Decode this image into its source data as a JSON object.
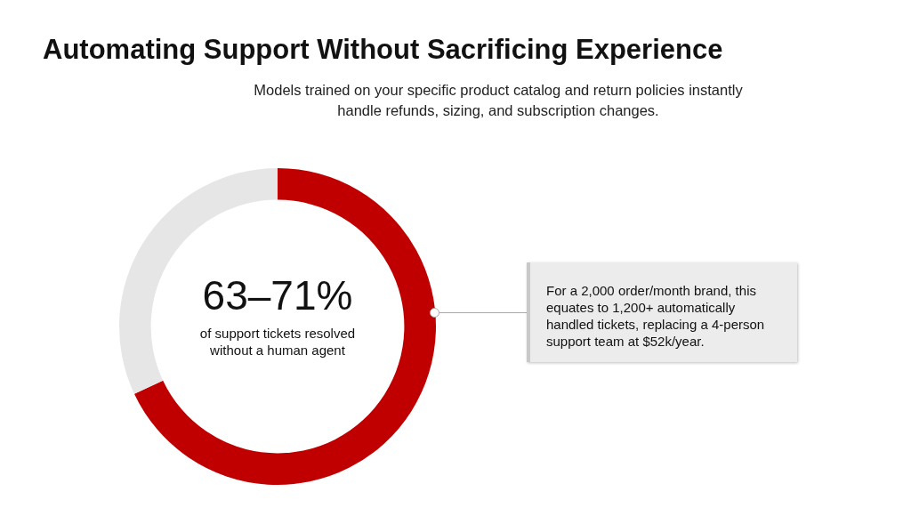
{
  "chart_data": {
    "type": "donut",
    "title": "Automating Support Without Sacrificing Experience",
    "subtitle": "Models trained on your specific product catalog and return policies instantly handle refunds, sizing, and subscription changes.",
    "categories": [
      null,
      null
    ],
    "values": [
      68,
      32
    ],
    "colors": [
      "#c00000",
      "#e6e6e6"
    ],
    "annotations": [
      "63–71%",
      "of support tickets resolved without a human agent",
      "For a 2,000 order/month brand, this equates to 1,200+ automatically handled tickets, replacing a 4-person support team at $52k/year."
    ]
  }
}
